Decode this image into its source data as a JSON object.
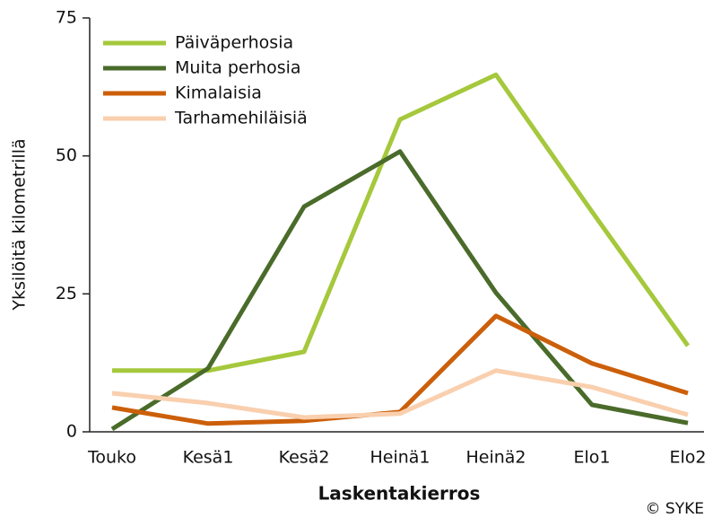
{
  "chart_data": {
    "type": "line",
    "x_label": "Laskentakierros",
    "y_label": "Yksilöitä kilometrillä",
    "credit": "© SYKE",
    "categories": [
      "Touko",
      "Kesä1",
      "Kesä2",
      "Heinä1",
      "Heinä2",
      "Elo1",
      "Elo2"
    ],
    "series": [
      {
        "name": "Päiväperhosia",
        "color": "#a5c83c",
        "values": [
          11.1,
          11.1,
          14.5,
          56.6,
          64.7,
          39.9,
          15.6
        ]
      },
      {
        "name": "Muita perhosia",
        "color": "#4a6b2a",
        "values": [
          0.5,
          11.5,
          40.8,
          50.8,
          25.2,
          4.9,
          1.6
        ]
      },
      {
        "name": "Kimalaisia",
        "color": "#cc5f0a",
        "values": [
          4.4,
          1.5,
          2.0,
          3.6,
          21,
          12.4,
          7.0
        ]
      },
      {
        "name": "Tarhamehiläisiä",
        "color": "#f9cfae",
        "values": [
          7.0,
          5.2,
          2.6,
          3.3,
          11.1,
          8.1,
          3.1
        ]
      }
    ],
    "ylim": [
      0,
      75
    ],
    "yticks": [
      0,
      25,
      50,
      75
    ],
    "legend": "upper left",
    "grid": false
  }
}
